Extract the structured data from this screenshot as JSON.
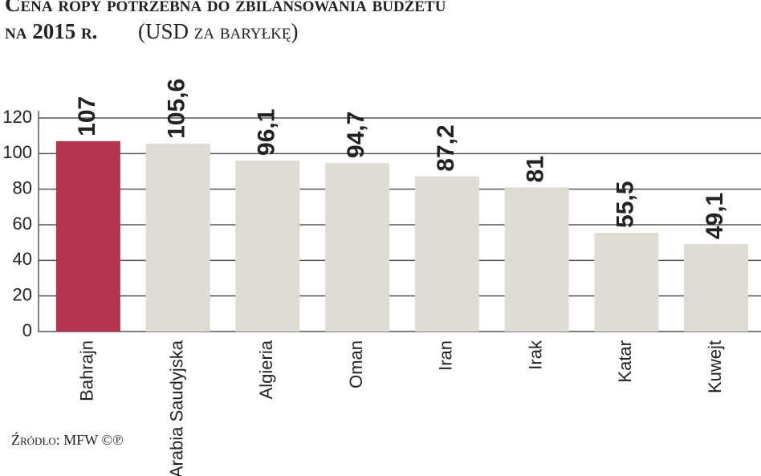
{
  "chart_data": {
    "type": "bar",
    "title": "Cena ropy potrzebna do zbilansowania budżetu",
    "title_line2": "na 2015 r.",
    "subtitle": "(USD za baryłkę)",
    "source": "Źródło: MFW ©℗",
    "categories": [
      "Bahrajn",
      "Arabia Saudyjska",
      "Algieria",
      "Oman",
      "Iran",
      "Irak",
      "Katar",
      "Kuwejt"
    ],
    "values": [
      107,
      105.6,
      96.1,
      94.7,
      87.2,
      81,
      55.5,
      49.1
    ],
    "value_labels": [
      "107",
      "105,6",
      "96,1",
      "94,7",
      "87,2",
      "81",
      "55,5",
      "49,1"
    ],
    "colors": [
      "#b5344f",
      "#dedcd3",
      "#dedcd3",
      "#dedcd3",
      "#dedcd3",
      "#dedcd3",
      "#dedcd3",
      "#dedcd3"
    ],
    "ylim": [
      0,
      120
    ],
    "yticks": [
      0,
      20,
      40,
      60,
      80,
      100,
      120
    ],
    "grid": true
  }
}
